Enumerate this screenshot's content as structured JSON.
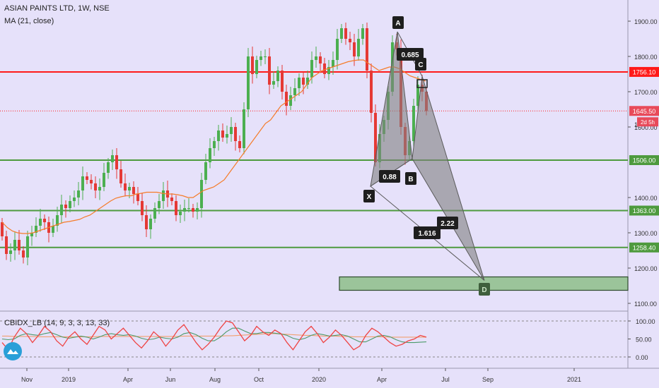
{
  "header": {
    "symbol": "ASIAN PAINTS LTD, 1W, NSE",
    "indicator": "MA (21, close)",
    "oscillator": "CBIDX_LB (14, 9, 3, 3, 13, 33)"
  },
  "colors": {
    "background": "#e6e1fa",
    "bull": "#4caf50",
    "bear": "#e53935",
    "ma": "#f57c2a",
    "resistance": "#ff1a1a",
    "support": "#4e9a3e",
    "pattern_fill": "#808080",
    "osc_fast": "#ef4444",
    "osc_slow": "#4c9a6a",
    "osc_signal": "#f2a070"
  },
  "chart_data": [
    {
      "type": "candlestick",
      "title": "ASIAN PAINTS LTD, 1W, NSE",
      "x_ticks": [
        "Nov",
        "2019",
        "Apr",
        "Jun",
        "Aug",
        "Oct",
        "2020",
        "Apr",
        "Jul",
        "Sep",
        "2021"
      ],
      "y_ticks": [
        "1900.00",
        "1800.00",
        "1700.00",
        "1600.00",
        "1400.00",
        "1300.00",
        "1200.00",
        "1100.00"
      ],
      "ylim": [
        1055,
        1945
      ],
      "series": [
        {
          "name": "MA (21, close)",
          "kind": "line",
          "values": [
            1330,
            1315,
            1305,
            1300,
            1298,
            1298,
            1300,
            1305,
            1310,
            1315,
            1320,
            1325,
            1330,
            1332,
            1335,
            1338,
            1345,
            1350,
            1360,
            1370,
            1380,
            1390,
            1398,
            1402,
            1405,
            1405,
            1410,
            1412,
            1415,
            1415,
            1415,
            1412,
            1410,
            1410,
            1408,
            1405,
            1400,
            1400,
            1410,
            1420,
            1425,
            1430,
            1440,
            1450,
            1470,
            1490,
            1510,
            1530,
            1550,
            1570,
            1590,
            1610,
            1620,
            1640,
            1660,
            1670,
            1680,
            1690,
            1700,
            1720,
            1740,
            1750,
            1760,
            1765,
            1770,
            1775,
            1780,
            1785,
            1788,
            1790,
            1790,
            1780,
            1770,
            1760,
            1765,
            1770,
            1770,
            1765,
            1755,
            1745,
            1740,
            1735,
            1730
          ]
        }
      ],
      "levels": [
        {
          "label": "1756.10",
          "value": 1756.1,
          "style": "resistance"
        },
        {
          "label": "1645.50",
          "value": 1645.5,
          "style": "last-price"
        },
        {
          "label": "1506.00",
          "value": 1506,
          "style": "support"
        },
        {
          "label": "1363.00",
          "value": 1363,
          "style": "support"
        },
        {
          "label": "1258.40",
          "value": 1258.4,
          "style": "support"
        }
      ],
      "price_tag": "2d 5h",
      "pattern": {
        "points": [
          {
            "label": "X",
            "value": 1432
          },
          {
            "label": "A",
            "value": 1870
          },
          {
            "label": "B",
            "value": 1510
          },
          {
            "label": "C",
            "value": 1744
          },
          {
            "label": "D",
            "value": 1165
          }
        ],
        "ratios": [
          "0.685",
          "0.88",
          "1.616",
          "2.22"
        ],
        "target_zone": [
          1137,
          1175
        ]
      }
    },
    {
      "type": "line",
      "title": "CBIDX_LB (14, 9, 3, 3, 13, 33)",
      "y_ticks": [
        "100.00",
        "50.00",
        "0.00"
      ],
      "ylim": [
        -20,
        120
      ],
      "series": [
        {
          "name": "fast",
          "values": [
            40,
            20,
            55,
            80,
            65,
            40,
            60,
            85,
            70,
            45,
            30,
            55,
            70,
            50,
            35,
            60,
            85,
            75,
            50,
            65,
            80,
            60,
            40,
            25,
            45,
            70,
            55,
            30,
            50,
            75,
            90,
            65,
            40,
            20,
            35,
            55,
            80,
            100,
            95,
            70,
            45,
            60,
            85,
            70,
            60,
            75,
            65,
            40,
            20,
            45,
            70,
            85,
            65,
            40,
            55,
            75,
            60,
            40,
            20,
            30,
            60,
            80,
            70,
            55,
            40,
            30,
            35,
            45,
            50,
            60,
            55
          ]
        },
        {
          "name": "slow",
          "values": [
            50,
            48,
            50,
            60,
            65,
            62,
            60,
            65,
            68,
            62,
            55,
            52,
            55,
            58,
            55,
            50,
            55,
            62,
            65,
            62,
            60,
            62,
            58,
            52,
            48,
            50,
            55,
            52,
            50,
            55,
            65,
            68,
            62,
            52,
            45,
            45,
            55,
            70,
            80,
            80,
            72,
            65,
            65,
            68,
            68,
            66,
            64,
            60,
            52,
            48,
            52,
            60,
            65,
            62,
            58,
            60,
            62,
            58,
            50,
            42,
            42,
            50,
            58,
            60,
            56,
            48,
            42,
            40,
            40,
            41,
            42
          ]
        },
        {
          "name": "signal",
          "values": [
            58,
            58,
            57,
            57,
            57,
            57,
            56,
            56,
            56,
            56,
            56,
            56,
            56,
            56,
            56,
            56,
            57,
            57,
            57,
            57,
            57,
            57,
            57,
            57,
            57,
            57,
            57,
            57,
            57,
            57,
            58,
            58,
            58,
            58,
            58,
            58,
            58,
            59,
            59,
            60,
            61,
            62,
            63,
            64,
            65,
            65,
            64,
            63,
            62,
            61,
            60,
            60,
            59,
            58,
            58,
            58,
            57,
            57,
            56,
            56,
            56,
            56,
            56,
            56,
            55,
            55,
            55,
            55,
            55,
            55,
            55
          ]
        }
      ]
    }
  ]
}
